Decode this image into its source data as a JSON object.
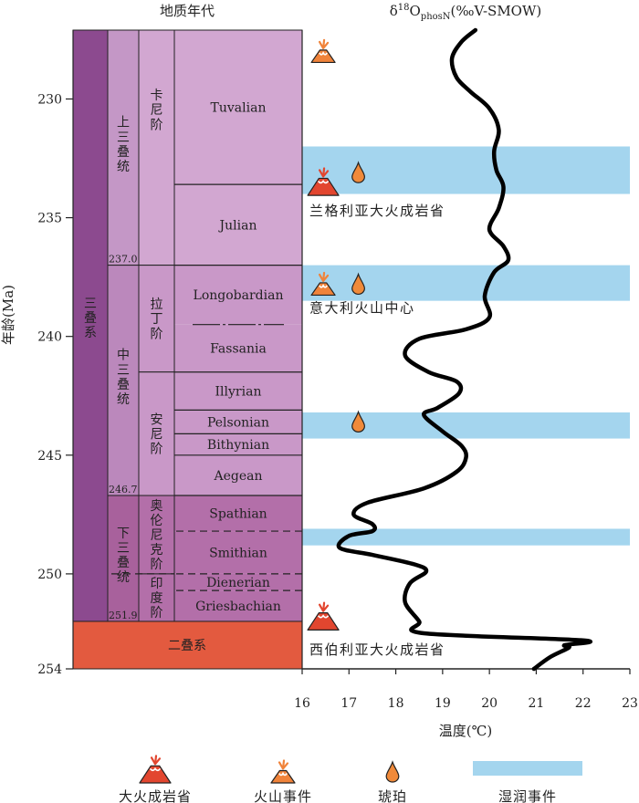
{
  "header": {
    "geo_title": "地质年代",
    "isotope_title_symbol": "δ",
    "isotope_title_sup": "18",
    "isotope_title_main": "O",
    "isotope_title_sub": "phosN",
    "isotope_title_tail": "(‰V-SMOW)"
  },
  "y_axis": {
    "label": "年龄(Ma)",
    "range": [
      227.1,
      254
    ],
    "ticks": [
      230,
      235,
      240,
      245,
      250,
      254
    ]
  },
  "x_axis": {
    "label": "温度(℃)",
    "range": [
      16,
      23
    ],
    "ticks": [
      16,
      17,
      18,
      19,
      20,
      21,
      22,
      23
    ]
  },
  "colors": {
    "system_triassic": "#8c4a8f",
    "system_permian": "#e35a3f",
    "series_upper": "#c497c6",
    "series_middle": "#bb88bc",
    "series_lower": "#a8619c",
    "stage_upper": "#d2a7d1",
    "stage_middle": "#c998c8",
    "stage_lower": "#b36fa9",
    "humid_band": "#a4d5ee",
    "volcano_large": "#e2462f",
    "volcano_small": "#f0833a",
    "amber": "#f08a3a"
  },
  "timescale": {
    "system": {
      "triassic": {
        "label": "三叠系",
        "top": 227.1,
        "bottom": 252
      },
      "permian": {
        "label": "二叠系",
        "top": 252,
        "bottom": 254
      }
    },
    "series": [
      {
        "label": "上三叠统",
        "top": 227.1,
        "bottom": 237.0,
        "base_age": "237.0",
        "color_key": "series_upper"
      },
      {
        "label": "中三叠统",
        "top": 237.0,
        "bottom": 246.7,
        "base_age": "246.7",
        "color_key": "series_middle"
      },
      {
        "label": "下三叠统",
        "top": 246.7,
        "bottom": 252,
        "base_age": "251.9",
        "color_key": "series_lower"
      }
    ],
    "stages": [
      {
        "label": "卡尼阶",
        "top": 227.1,
        "bottom": 237.0,
        "color_key": "stage_upper"
      },
      {
        "label": "拉丁阶",
        "top": 237.0,
        "bottom": 241.5,
        "color_key": "stage_middle"
      },
      {
        "label": "安尼阶",
        "top": 241.5,
        "bottom": 246.7,
        "color_key": "stage_middle"
      },
      {
        "label": "奥伦尼克阶",
        "top": 246.7,
        "bottom": 250.0,
        "color_key": "stage_lower"
      },
      {
        "label": "印度阶",
        "top": 250.0,
        "bottom": 252,
        "color_key": "stage_lower"
      }
    ],
    "substages": [
      {
        "label": "Tuvalian",
        "top": 227.1,
        "bottom": 233.6,
        "color_key": "stage_upper",
        "line": "solid"
      },
      {
        "label": "Julian",
        "top": 233.6,
        "bottom": 237.0,
        "color_key": "stage_upper",
        "line": "solid"
      },
      {
        "label": "Longobardian",
        "top": 237.0,
        "bottom": 239.5,
        "color_key": "stage_middle",
        "line": "dotted"
      },
      {
        "label": "Fassania",
        "top": 239.5,
        "bottom": 241.5,
        "color_key": "stage_middle",
        "line": "solid"
      },
      {
        "label": "Illyrian",
        "top": 241.5,
        "bottom": 243.1,
        "color_key": "stage_middle",
        "line": "solid"
      },
      {
        "label": "Pelsonian",
        "top": 243.1,
        "bottom": 244.1,
        "color_key": "stage_middle",
        "line": "solid"
      },
      {
        "label": "Bithynian",
        "top": 244.1,
        "bottom": 245.0,
        "color_key": "stage_middle",
        "line": "solid"
      },
      {
        "label": "Aegean",
        "top": 245.0,
        "bottom": 246.7,
        "color_key": "stage_middle",
        "line": "solid"
      },
      {
        "label": "Spathian",
        "top": 246.7,
        "bottom": 248.2,
        "color_key": "stage_lower",
        "line": "dashed"
      },
      {
        "label": "Smithian",
        "top": 248.2,
        "bottom": 250.0,
        "color_key": "stage_lower",
        "line": "dashed"
      },
      {
        "label": "Dienerian",
        "top": 250.0,
        "bottom": 250.7,
        "color_key": "stage_lower",
        "line": "dashed"
      },
      {
        "label": "Griesbachian",
        "top": 250.7,
        "bottom": 252,
        "color_key": "stage_lower",
        "line": "solid"
      }
    ]
  },
  "humid_events": [
    {
      "top": 232.0,
      "bottom": 234.0
    },
    {
      "top": 237.0,
      "bottom": 238.5
    },
    {
      "top": 243.2,
      "bottom": 244.3
    },
    {
      "top": 248.1,
      "bottom": 248.8
    }
  ],
  "event_markers": [
    {
      "type": "volcano_small",
      "age": 228.0,
      "temp": 16.45
    },
    {
      "type": "volcano_large",
      "age": 233.6,
      "temp": 16.45
    },
    {
      "type": "amber",
      "age": 233.1,
      "temp": 17.2
    },
    {
      "type": "volcano_small",
      "age": 237.8,
      "temp": 16.45
    },
    {
      "type": "amber",
      "age": 237.8,
      "temp": 17.2
    },
    {
      "type": "amber",
      "age": 243.6,
      "temp": 17.2
    },
    {
      "type": "volcano_large",
      "age": 251.9,
      "temp": 16.45
    }
  ],
  "annotations": [
    {
      "text": "兰格利亚大火成岩省",
      "age": 234.7
    },
    {
      "text": "意大利火山中心",
      "age": 238.8
    },
    {
      "text": "西伯利亚大火成岩省",
      "age": 253.2
    }
  ],
  "chart_data": {
    "type": "line",
    "xlabel": "温度(℃)",
    "ylabel": "年龄(Ma)",
    "xlim": [
      16,
      23
    ],
    "ylim": [
      254,
      227.1
    ],
    "series": [
      {
        "points": [
          [
            19.7,
            227.1
          ],
          [
            19.4,
            227.6
          ],
          [
            19.2,
            228.3
          ],
          [
            19.3,
            229.1
          ],
          [
            19.6,
            229.7
          ],
          [
            20.0,
            230.4
          ],
          [
            20.2,
            231.3
          ],
          [
            20.1,
            232.2
          ],
          [
            20.15,
            233.0
          ],
          [
            20.3,
            233.7
          ],
          [
            20.2,
            234.6
          ],
          [
            20.0,
            235.5
          ],
          [
            20.3,
            236.2
          ],
          [
            20.4,
            236.8
          ],
          [
            20.1,
            237.3
          ],
          [
            19.9,
            238.3
          ],
          [
            20.0,
            239.2
          ],
          [
            19.5,
            239.7
          ],
          [
            18.5,
            240.1
          ],
          [
            18.2,
            240.8
          ],
          [
            18.7,
            241.5
          ],
          [
            19.3,
            241.9
          ],
          [
            19.35,
            242.4
          ],
          [
            18.9,
            243.0
          ],
          [
            18.6,
            243.3
          ],
          [
            19.0,
            244.0
          ],
          [
            19.4,
            244.6
          ],
          [
            19.5,
            245.1
          ],
          [
            19.3,
            245.7
          ],
          [
            18.6,
            246.4
          ],
          [
            17.4,
            247.0
          ],
          [
            17.1,
            247.5
          ],
          [
            17.5,
            247.9
          ],
          [
            17.5,
            248.2
          ],
          [
            17.0,
            248.4
          ],
          [
            16.8,
            248.9
          ],
          [
            17.5,
            249.2
          ],
          [
            18.4,
            249.6
          ],
          [
            18.65,
            249.9
          ],
          [
            18.3,
            250.4
          ],
          [
            18.2,
            251.2
          ],
          [
            18.5,
            252.0
          ],
          [
            18.6,
            252.5
          ],
          [
            22.0,
            252.8
          ],
          [
            21.6,
            253.0
          ],
          [
            21.7,
            253.1
          ],
          [
            21.3,
            253.5
          ],
          [
            20.95,
            254.0
          ]
        ]
      }
    ]
  },
  "legend": {
    "items": [
      {
        "key": "volcano_large",
        "label": "大火成岩省"
      },
      {
        "key": "volcano_small",
        "label": "火山事件"
      },
      {
        "key": "amber",
        "label": "琥珀"
      },
      {
        "key": "humid_band",
        "label": "湿润事件"
      }
    ]
  }
}
